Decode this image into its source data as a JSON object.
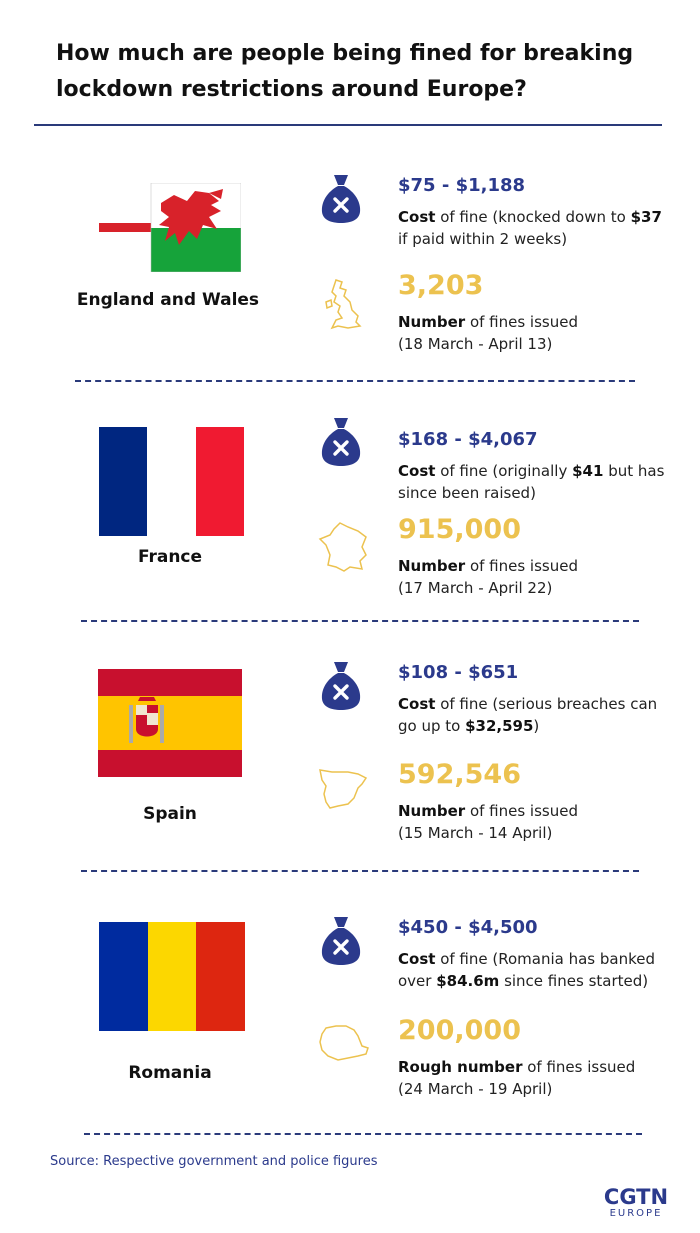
{
  "title": "How much are people being fined for breaking lockdown restrictions around Europe?",
  "countries": [
    {
      "name": "England and Wales",
      "flag_icon": "england-wales-flag-icon",
      "map_icon": "uk-map-icon",
      "cost_range": "$75 - $1,188",
      "cost_label": "Cost",
      "cost_text_1": " of fine (knocked down to ",
      "cost_bold_2": "$37",
      "cost_text_2": " if paid within 2 weeks)",
      "count": "3,203",
      "count_label": "Number",
      "count_text": " of fines issued",
      "count_period": " (18 March - April 13)"
    },
    {
      "name": "France",
      "flag_icon": "france-flag-icon",
      "map_icon": "france-map-icon",
      "cost_range": "$168 - $4,067",
      "cost_label": "Cost",
      "cost_text_1": " of fine (originally ",
      "cost_bold_2": "$41",
      "cost_text_2": " but has since been raised)",
      "count": "915,000",
      "count_label": "Number",
      "count_text": " of fines issued",
      "count_period": "(17 March - April 22)"
    },
    {
      "name": "Spain",
      "flag_icon": "spain-flag-icon",
      "map_icon": "spain-map-icon",
      "cost_range": "$108 - $651",
      "cost_label": "Cost",
      "cost_text_1": " of fine (serious breaches can go up to ",
      "cost_bold_2": "$32,595",
      "cost_text_2": ")",
      "count": "592,546",
      "count_label": "Number",
      "count_text": " of fines issued",
      "count_period": "(15 March - 14 April)"
    },
    {
      "name": "Romania",
      "flag_icon": "romania-flag-icon",
      "map_icon": "romania-map-icon",
      "cost_range": "$450 - $4,500",
      "cost_label": "Cost",
      "cost_text_1": " of fine (Romania has banked over ",
      "cost_bold_2": "$84.6m",
      "cost_text_2": " since fines started)",
      "count": "200,000",
      "count_label": "Rough number",
      "count_text": " of fines issued",
      "count_period": "(24 March - 19 April)"
    }
  ],
  "source": "Source: Respective government and police figures",
  "logo": {
    "main": "CGTN",
    "sub": "EUROPE"
  },
  "colors": {
    "navy": "#2b3a8c",
    "gold": "#ecc24f",
    "rule": "#2a3a7a"
  }
}
